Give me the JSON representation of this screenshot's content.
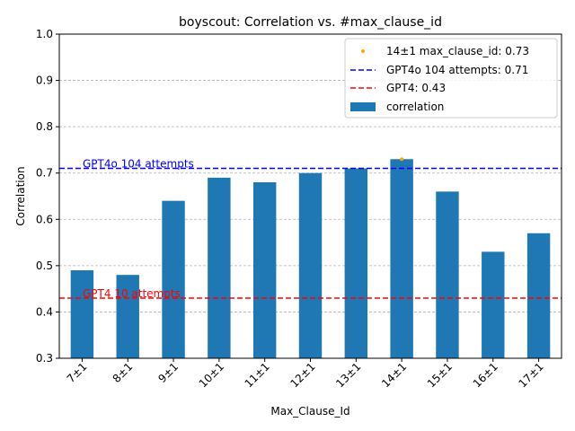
{
  "chart_data": {
    "type": "bar",
    "title": "boyscout: Correlation vs. #max_clause_id",
    "xlabel": "Max_Clause_Id",
    "ylabel": "Correlation",
    "ylim": [
      0.3,
      1.0
    ],
    "yticks": [
      "0.3",
      "0.4",
      "0.5",
      "0.6",
      "0.7",
      "0.8",
      "0.9",
      "1.0"
    ],
    "grid": "horizontal dashed",
    "legend_position": "top-right",
    "categories": [
      "7±1",
      "8±1",
      "9±1",
      "10±1",
      "11±1",
      "12±1",
      "13±1",
      "14±1",
      "15±1",
      "16±1",
      "17±1"
    ],
    "series": [
      {
        "name": "correlation",
        "color": "#1f77b4",
        "values": [
          0.49,
          0.48,
          0.64,
          0.69,
          0.68,
          0.7,
          0.71,
          0.73,
          0.66,
          0.53,
          0.57
        ]
      }
    ],
    "highlight_point": {
      "category": "14±1",
      "value": 0.73,
      "color": "#ffa500",
      "legend": "14±1 max_clause_id: 0.73"
    },
    "reference_lines": [
      {
        "value": 0.71,
        "color": "#0000ff",
        "legend": "GPT4o 104 attempts: 0.71",
        "annotation": "GPT4o 104 attempts"
      },
      {
        "value": 0.43,
        "color": "#ff0000",
        "legend": "GPT4: 0.43",
        "annotation": "GPT4 10 attempts"
      }
    ]
  }
}
